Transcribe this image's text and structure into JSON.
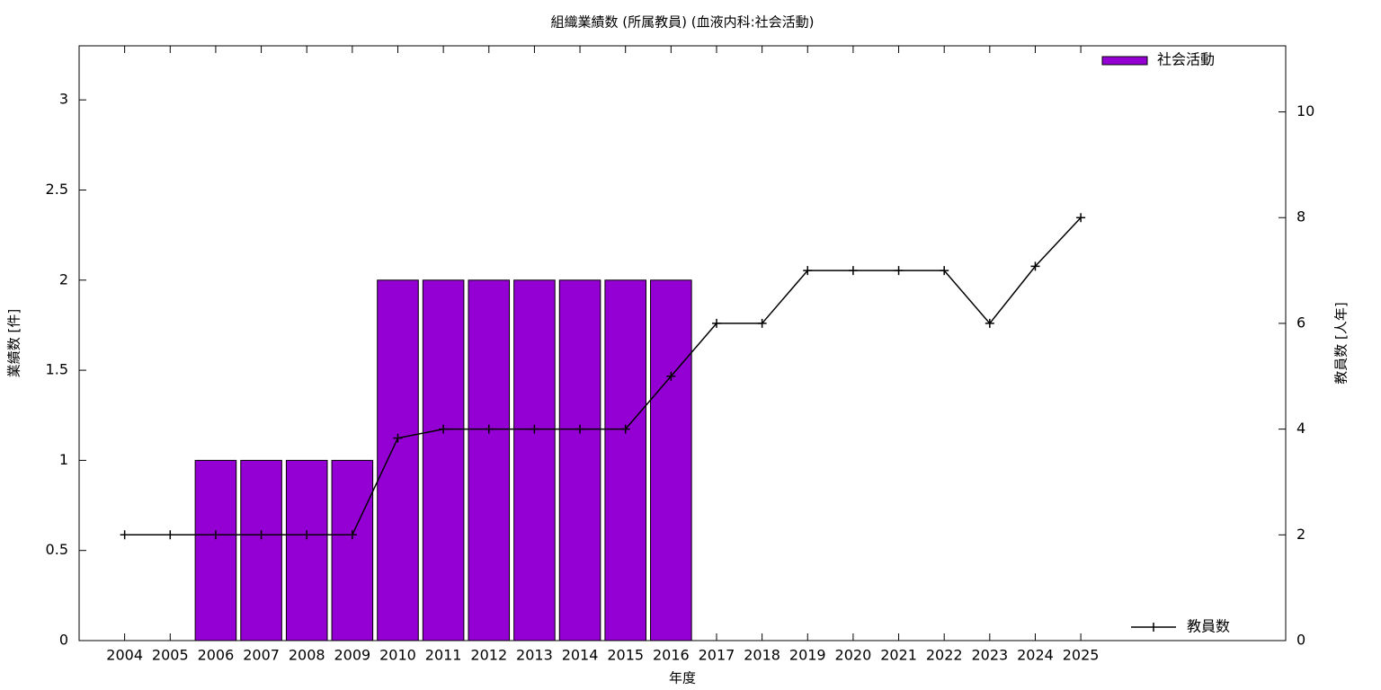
{
  "chart_data": {
    "type": "bar",
    "title": "組織業績数 (所属教員) (血液内科:社会活動)",
    "x_label": "年度",
    "y_label": "業績数 [件]",
    "y2_label": "教員数 [人年]",
    "categories": [
      "2004",
      "2005",
      "2006",
      "2007",
      "2008",
      "2009",
      "2010",
      "2011",
      "2012",
      "2013",
      "2014",
      "2015",
      "2016",
      "2017",
      "2018",
      "2019",
      "2020",
      "2021",
      "2022",
      "2023",
      "2024",
      "2025"
    ],
    "series": [
      {
        "name": "社会活動",
        "type": "bar",
        "color": "#9400d3",
        "values": [
          0,
          0,
          1,
          1,
          1,
          1,
          2,
          2,
          2,
          2,
          2,
          2,
          2,
          0,
          0,
          0,
          0,
          0,
          0,
          0,
          0,
          0
        ]
      },
      {
        "name": "教員数",
        "type": "line",
        "axis": "y2",
        "color": "#000000",
        "values": [
          2,
          2,
          2,
          2,
          2,
          2,
          3.83,
          4,
          4,
          4,
          4,
          4,
          5,
          6,
          6,
          7,
          7,
          7,
          7,
          6,
          7.08,
          8
        ]
      }
    ],
    "ylim": [
      0,
      3.3
    ],
    "yticks": [
      0,
      0.5,
      1,
      1.5,
      2,
      2.5,
      3
    ],
    "y2lim": [
      0,
      11.25
    ],
    "y2ticks": [
      0,
      2,
      4,
      6,
      8,
      10
    ],
    "grid": false,
    "legend_position": "right"
  }
}
